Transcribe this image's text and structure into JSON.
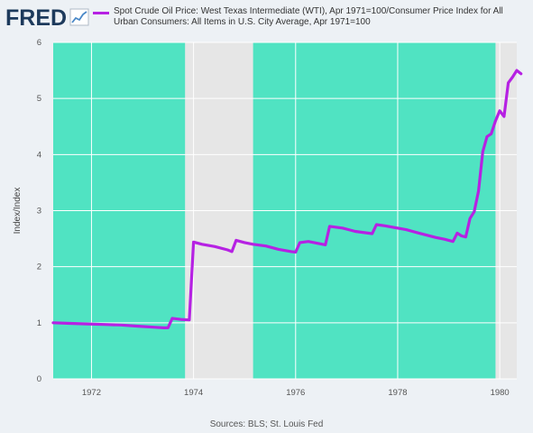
{
  "branding": {
    "logo_text": "FRED",
    "logo_icon": "fred-trend-line-icon"
  },
  "colors": {
    "background": "#edf1f5",
    "plot_background": "#e6e6e6",
    "shade": "#50e3c2",
    "series": "#b621e3",
    "grid": "#ffffff",
    "logo": "#1d3a5c"
  },
  "legend": {
    "series_label": "Spot Crude Oil Price: West Texas Intermediate (WTI), Apr 1971=100/Consumer Price Index for All Urban Consumers: All Items in U.S. City Average, Apr 1971=100"
  },
  "source": "Sources: BLS; St. Louis Fed",
  "chart_data": {
    "type": "line",
    "title": "",
    "xlabel": "",
    "ylabel": "Index/Index",
    "x_ticks": [
      "1972",
      "1974",
      "1976",
      "1978",
      "1980"
    ],
    "y_ticks": [
      0,
      1,
      2,
      3,
      4,
      5,
      6
    ],
    "ylim": [
      0,
      6
    ],
    "xlim": [
      "1971-04",
      "1980-05"
    ],
    "grid": true,
    "shaded_regions": [
      {
        "start": "1971-04",
        "end": "1973-11"
      },
      {
        "start": "1975-03",
        "end": "1979-12"
      }
    ],
    "series": [
      {
        "name": "Spot Crude Oil Price: West Texas Intermediate (WTI), Apr 1971=100/Consumer Price Index for All Urban Consumers: All Items in U.S. City Average, Apr 1971=100",
        "points": [
          [
            "1971-04",
            1.0
          ],
          [
            "1971-08",
            0.99
          ],
          [
            "1971-12",
            0.98
          ],
          [
            "1972-04",
            0.97
          ],
          [
            "1972-08",
            0.96
          ],
          [
            "1972-12",
            0.94
          ],
          [
            "1973-04",
            0.92
          ],
          [
            "1973-06",
            0.91
          ],
          [
            "1973-07",
            0.91
          ],
          [
            "1973-08",
            1.08
          ],
          [
            "1973-10",
            1.06
          ],
          [
            "1973-12",
            1.05
          ],
          [
            "1974-01",
            2.44
          ],
          [
            "1974-03",
            2.4
          ],
          [
            "1974-06",
            2.36
          ],
          [
            "1974-09",
            2.3
          ],
          [
            "1974-10",
            2.27
          ],
          [
            "1974-11",
            2.47
          ],
          [
            "1975-01",
            2.43
          ],
          [
            "1975-03",
            2.4
          ],
          [
            "1975-06",
            2.37
          ],
          [
            "1975-09",
            2.31
          ],
          [
            "1975-12",
            2.27
          ],
          [
            "1976-01",
            2.26
          ],
          [
            "1976-02",
            2.43
          ],
          [
            "1976-04",
            2.45
          ],
          [
            "1976-06",
            2.42
          ],
          [
            "1976-08",
            2.39
          ],
          [
            "1976-09",
            2.72
          ],
          [
            "1976-12",
            2.69
          ],
          [
            "1977-03",
            2.63
          ],
          [
            "1977-07",
            2.59
          ],
          [
            "1977-08",
            2.75
          ],
          [
            "1977-10",
            2.73
          ],
          [
            "1978-03",
            2.66
          ],
          [
            "1978-06",
            2.6
          ],
          [
            "1978-10",
            2.52
          ],
          [
            "1978-12",
            2.49
          ],
          [
            "1979-02",
            2.45
          ],
          [
            "1979-03",
            2.6
          ],
          [
            "1979-04",
            2.55
          ],
          [
            "1979-05",
            2.53
          ],
          [
            "1979-06",
            2.86
          ],
          [
            "1979-07",
            2.98
          ],
          [
            "1979-08",
            3.35
          ],
          [
            "1979-09",
            4.05
          ],
          [
            "1979-10",
            4.32
          ],
          [
            "1979-11",
            4.37
          ],
          [
            "1979-12",
            4.6
          ],
          [
            "1980-01",
            4.78
          ],
          [
            "1980-02",
            4.68
          ],
          [
            "1980-03",
            5.28
          ],
          [
            "1980-04",
            5.38
          ],
          [
            "1980-05",
            5.5
          ],
          [
            "1980-06",
            5.44
          ]
        ]
      }
    ]
  }
}
